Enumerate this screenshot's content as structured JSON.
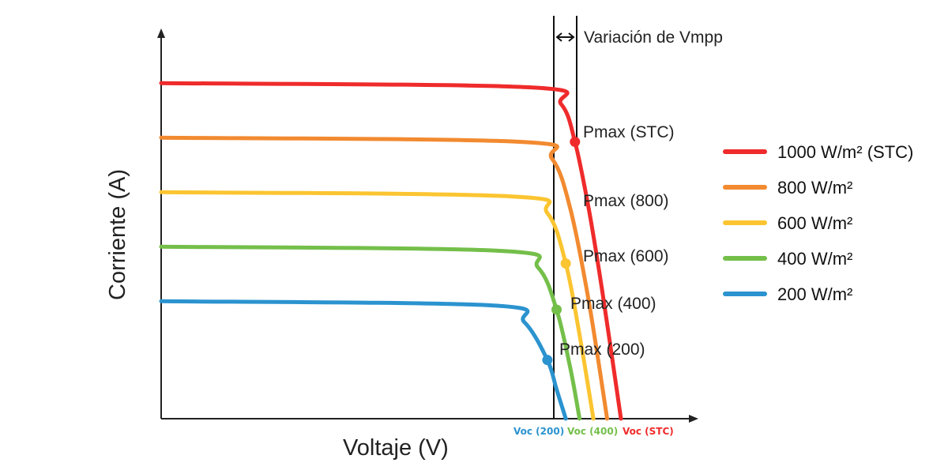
{
  "chart_data": {
    "type": "line",
    "title": "",
    "xlabel": "Voltaje (V)",
    "ylabel": "Corriente (A)",
    "xlim": [
      0,
      1
    ],
    "ylim": [
      0,
      1
    ],
    "grid": false,
    "legend_position": "right",
    "vmpp_annotation": "Variación de Vmpp",
    "series": [
      {
        "name": "1000 W/m² (STC)",
        "color": "#ef2b2b",
        "isc": 0.8,
        "voc": 1.0,
        "pmax_label": "Pmax (STC)",
        "pmax": {
          "v": 0.9,
          "i": 0.66
        },
        "voc_label": "Voc (STC)",
        "points": [
          [
            0,
            0.8
          ],
          [
            0.8,
            0.79
          ],
          [
            0.87,
            0.75
          ],
          [
            0.9,
            0.66
          ],
          [
            0.93,
            0.5
          ],
          [
            0.96,
            0.3
          ],
          [
            1.0,
            0
          ]
        ]
      },
      {
        "name": "800 W/m²",
        "color": "#f28a30",
        "isc": 0.67,
        "voc": 0.97,
        "pmax_label": "Pmax (800)",
        "pmax": null,
        "voc_label": "",
        "points": [
          [
            0,
            0.67
          ],
          [
            0.78,
            0.66
          ],
          [
            0.85,
            0.62
          ],
          [
            0.89,
            0.5
          ],
          [
            0.93,
            0.28
          ],
          [
            0.97,
            0
          ]
        ]
      },
      {
        "name": "600 W/m²",
        "color": "#fbc531",
        "isc": 0.54,
        "voc": 0.94,
        "pmax_label": "Pmax (600)",
        "pmax": {
          "v": 0.88,
          "i": 0.37
        },
        "voc_label": "",
        "points": [
          [
            0,
            0.54
          ],
          [
            0.76,
            0.53
          ],
          [
            0.84,
            0.49
          ],
          [
            0.88,
            0.37
          ],
          [
            0.91,
            0.2
          ],
          [
            0.94,
            0
          ]
        ]
      },
      {
        "name": "400 W/m²",
        "color": "#74bf4a",
        "isc": 0.41,
        "voc": 0.91,
        "pmax_label": "Pmax (400)",
        "pmax": {
          "v": 0.86,
          "i": 0.26
        },
        "voc_label": "Voc (400)",
        "points": [
          [
            0,
            0.41
          ],
          [
            0.74,
            0.4
          ],
          [
            0.82,
            0.36
          ],
          [
            0.86,
            0.26
          ],
          [
            0.89,
            0.12
          ],
          [
            0.91,
            0
          ]
        ]
      },
      {
        "name": "200 W/m²",
        "color": "#2b93cf",
        "isc": 0.28,
        "voc": 0.88,
        "pmax_label": "Pmax (200)",
        "pmax": {
          "v": 0.84,
          "i": 0.14
        },
        "voc_label": "Voc (200)",
        "points": [
          [
            0,
            0.28
          ],
          [
            0.72,
            0.27
          ],
          [
            0.79,
            0.23
          ],
          [
            0.84,
            0.14
          ],
          [
            0.86,
            0.07
          ],
          [
            0.88,
            0
          ]
        ]
      }
    ],
    "legend": [
      {
        "label": "1000 W/m² (STC)",
        "color": "#ef2b2b"
      },
      {
        "label": "800 W/m²",
        "color": "#f28a30"
      },
      {
        "label": "600 W/m²",
        "color": "#fbc531"
      },
      {
        "label": "400 W/m²",
        "color": "#74bf4a"
      },
      {
        "label": "200 W/m²",
        "color": "#2b93cf"
      }
    ]
  }
}
